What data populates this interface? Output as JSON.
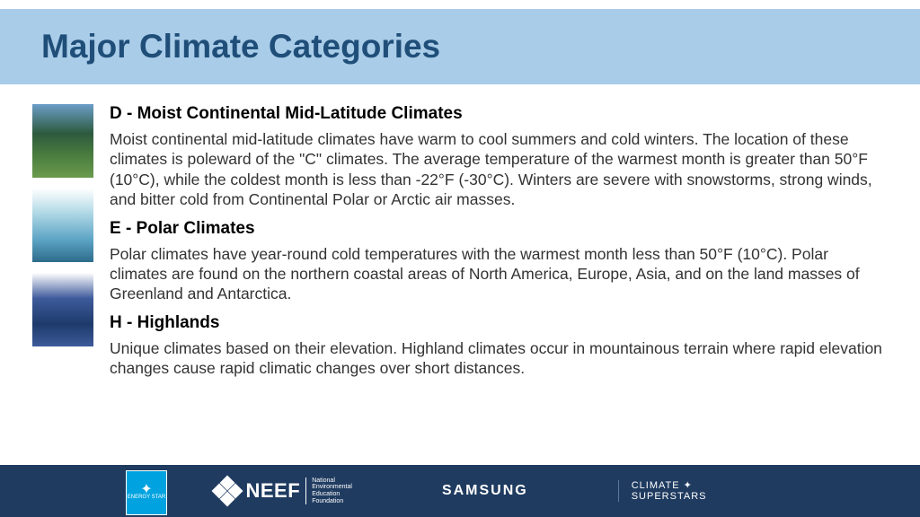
{
  "header": {
    "title": "Major Climate Categories",
    "band_color": "#a9cce8",
    "title_color": "#1f4e79",
    "title_fontsize": 37
  },
  "categories": [
    {
      "heading": "D - Moist Continental Mid-Latitude Climates",
      "body": "Moist continental mid-latitude climates have warm to cool summers and cold winters. The location of these climates is poleward of the \"C\" climates. The average temperature of the warmest month is greater than 50°F (10°C), while the coldest month is less than -22°F (-30°C). Winters are severe with snowstorms, strong winds, and bitter cold from Continental Polar or Arctic air masses.",
      "image_name": "continental-forest-mountain"
    },
    {
      "heading": "E - Polar Climates",
      "body": "Polar climates have year-round cold temperatures with the warmest month less than 50°F (10°C). Polar climates are found on the northern coastal areas of North America, Europe, Asia, and on the land masses of Greenland and Antarctica.",
      "image_name": "polar-ice-glacier"
    },
    {
      "heading": "H - Highlands",
      "body": "Unique climates based on their elevation. Highland climates occur in mountainous terrain where rapid elevation changes cause rapid climatic changes over short distances.",
      "image_name": "highland-mountain-peak"
    }
  ],
  "footer": {
    "background_color": "#1f3b60",
    "energy_star": {
      "label_top": "✦",
      "label_bottom": "ENERGY STAR",
      "bg": "#00a3e0"
    },
    "neef": {
      "acronym": "NEEF",
      "subtitle_l1": "National",
      "subtitle_l2": "Environmental",
      "subtitle_l3": "Education",
      "subtitle_l4": "Foundation"
    },
    "samsung": "SAMSUNG",
    "climate_superstars": {
      "line1": "CLIMATE",
      "line2": "SUPERSTARS",
      "leaf": "✦"
    }
  },
  "styling": {
    "body_font": "Verdana",
    "heading_fontsize": 19,
    "body_fontsize": 17.5,
    "text_color": "#333333",
    "heading_color": "#000000"
  }
}
